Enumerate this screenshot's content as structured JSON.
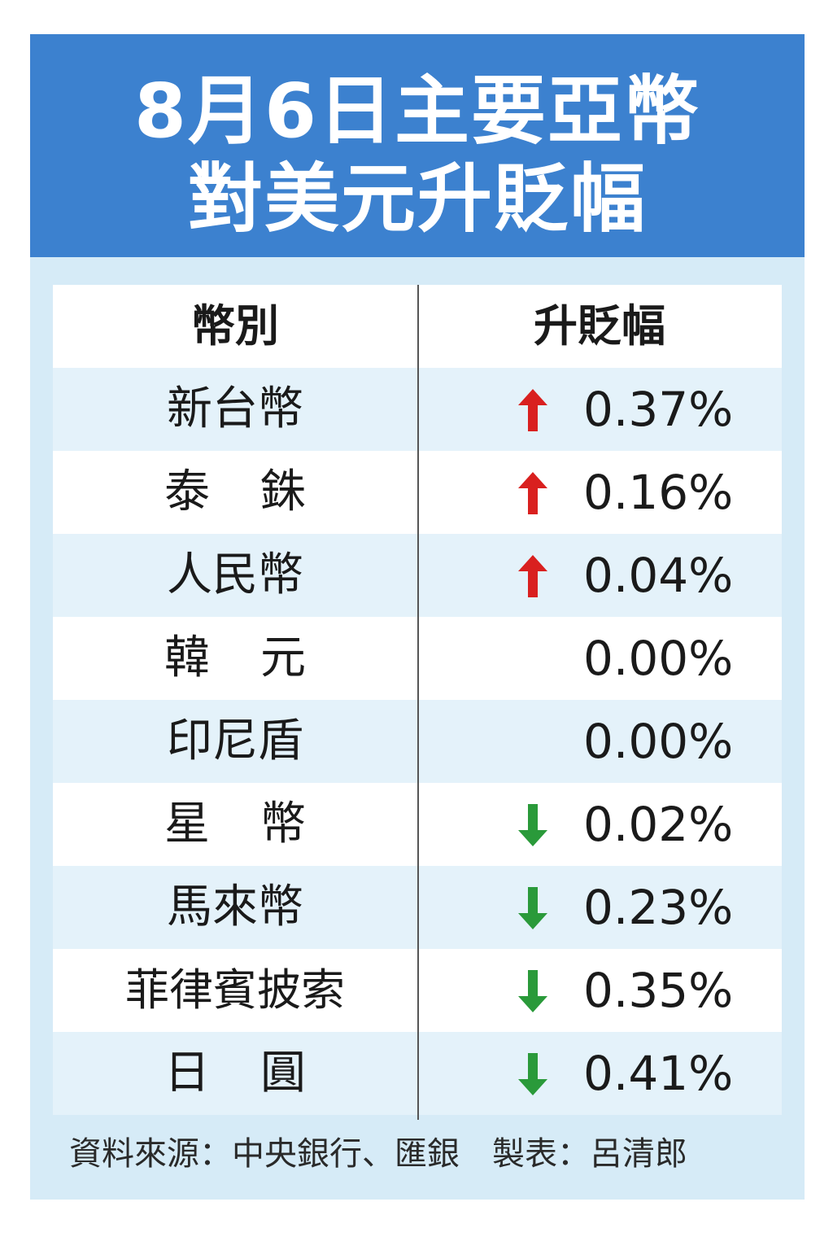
{
  "title": {
    "line1": "8月6日主要亞幣",
    "line2": "對美元升貶幅"
  },
  "table": {
    "header_currency": "幣別",
    "header_change": "升貶幅"
  },
  "source": "資料來源：中央銀行、匯銀　製表：呂清郎",
  "colors": {
    "title_bar": "#3c81cf",
    "up_arrow": "#d9201f",
    "down_arrow": "#2a9a3a"
  },
  "chart_data": {
    "type": "table",
    "title": "8月6日主要亞幣對美元升貶幅",
    "columns": [
      "幣別",
      "升貶幅"
    ],
    "rows": [
      {
        "currency": "新台幣",
        "change": "0.37%",
        "value": 0.37,
        "direction": "up"
      },
      {
        "currency": "泰　銖",
        "change": "0.16%",
        "value": 0.16,
        "direction": "up"
      },
      {
        "currency": "人民幣",
        "change": "0.04%",
        "value": 0.04,
        "direction": "up"
      },
      {
        "currency": "韓　元",
        "change": "0.00%",
        "value": 0.0,
        "direction": "none"
      },
      {
        "currency": "印尼盾",
        "change": "0.00%",
        "value": 0.0,
        "direction": "none"
      },
      {
        "currency": "星　幣",
        "change": "0.02%",
        "value": -0.02,
        "direction": "down"
      },
      {
        "currency": "馬來幣",
        "change": "0.23%",
        "value": -0.23,
        "direction": "down"
      },
      {
        "currency": "菲律賓披索",
        "change": "0.35%",
        "value": -0.35,
        "direction": "down"
      },
      {
        "currency": "日　圓",
        "change": "0.41%",
        "value": -0.41,
        "direction": "down"
      }
    ]
  }
}
